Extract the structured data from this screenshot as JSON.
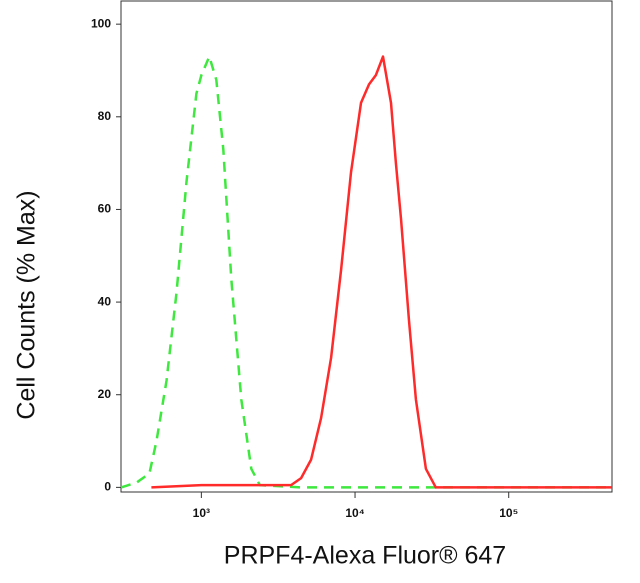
{
  "chart_data": {
    "type": "line",
    "xlabel": "PRPF4-Alexa Fluor® 647",
    "ylabel": "Cell Counts (% Max)",
    "xscale": "log",
    "grid": false,
    "xlim": [
      300,
      470000
    ],
    "ylim": [
      -1,
      105
    ],
    "xticks": [
      {
        "value": 1000,
        "label": "10³"
      },
      {
        "value": 10000,
        "label": "10⁴"
      },
      {
        "value": 100000,
        "label": "10⁵"
      }
    ],
    "yticks": [
      0,
      20,
      40,
      60,
      80,
      100
    ],
    "series": [
      {
        "color": "#3ee83e",
        "linestyle": "dashed",
        "x": [
          300,
          378,
          459,
          511,
          593,
          689,
          800,
          929,
          1000,
          1127,
          1251,
          1389,
          1566,
          1819,
          2113,
          2400,
          4460,
          20000,
          470000
        ],
        "values": [
          0,
          1,
          3,
          10,
          23,
          42,
          66,
          85,
          89,
          93,
          88,
          73,
          45,
          19,
          4,
          0.5,
          0,
          0,
          0
        ]
      },
      {
        "color": "#ff2a2a",
        "linestyle": "solid",
        "x": [
          473,
          1000,
          3300,
          3838,
          4460,
          5176,
          6010,
          6982,
          8110,
          9418,
          10940,
          12330,
          13680,
          15200,
          17130,
          18460,
          19900,
          22440,
          24900,
          28900,
          33560,
          470000
        ],
        "values": [
          0,
          0.5,
          0.5,
          0.5,
          2,
          6,
          15,
          28,
          47,
          68,
          83,
          87,
          89,
          93,
          83,
          70,
          58,
          36,
          19,
          4,
          0,
          0
        ]
      }
    ]
  }
}
